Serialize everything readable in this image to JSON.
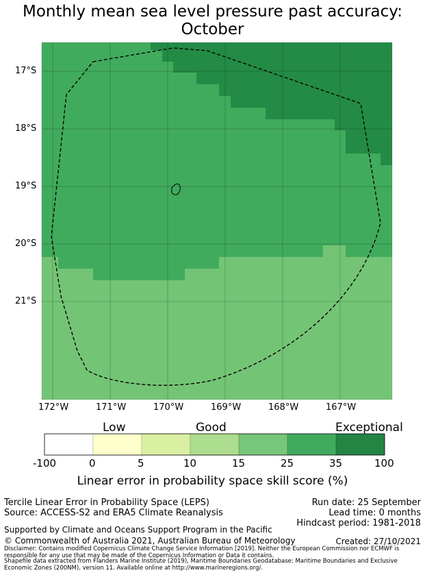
{
  "title": {
    "line1": "Monthly mean sea level pressure past accuracy:",
    "line2": "October"
  },
  "map": {
    "lat_labels": [
      "17°S",
      "18°S",
      "19°S",
      "20°S",
      "21°S"
    ],
    "lon_labels": [
      "172°W",
      "171°W",
      "170°W",
      "169°W",
      "168°W",
      "167°W"
    ],
    "extent": {
      "lon_min": -172.2,
      "lon_max": -166.1,
      "lat_min": -22.7,
      "lat_max": -16.5
    },
    "colors": {
      "exceptional": "#238b45",
      "band_25_35": "#41ab5d",
      "band_15_25": "#74c476"
    }
  },
  "colorbar": {
    "categories": [
      "Low",
      "Good",
      "Exceptional"
    ],
    "ticks": [
      "-100",
      "0",
      "5",
      "10",
      "15",
      "25",
      "35",
      "100"
    ],
    "colors": [
      "#ffffff",
      "#ffffcc",
      "#d9f0a3",
      "#addd8e",
      "#78c679",
      "#41ab5d",
      "#238443"
    ],
    "label": "Linear error in probability space skill score (%)"
  },
  "footer": {
    "product": "Tercile Linear Error in Probability Space (LEPS)",
    "source": "Source: ACCESS-S2 and ERA5 Climate Reanalysis",
    "run_date": "Run date: 25 September",
    "lead_time": "Lead time: 0 months",
    "hindcast": "Hindcast period: 1981-2018",
    "support": "Supported by Climate and Oceans Support Program in the Pacific",
    "copyright": "© Commonwealth of Australia 2021, Australian Bureau of Meteorology",
    "created": "Created: 27/10/2021",
    "disclaimer": "Disclaimer: Contains modified Copernicus Climate Change Service Information [2019]. Neither the European Commission nor ECMWF is responsible for any use that may be made of the Copernicus Information or Data it contains.",
    "shapefile": "Shapefile data extracted from Flanders Marine Institute (2019), Maritime Boundaries Geodatabase: Maritime Boundaries and Exclusive Economic Zones (200NM), version 11. Available online at http://www.marineregions.org/."
  }
}
